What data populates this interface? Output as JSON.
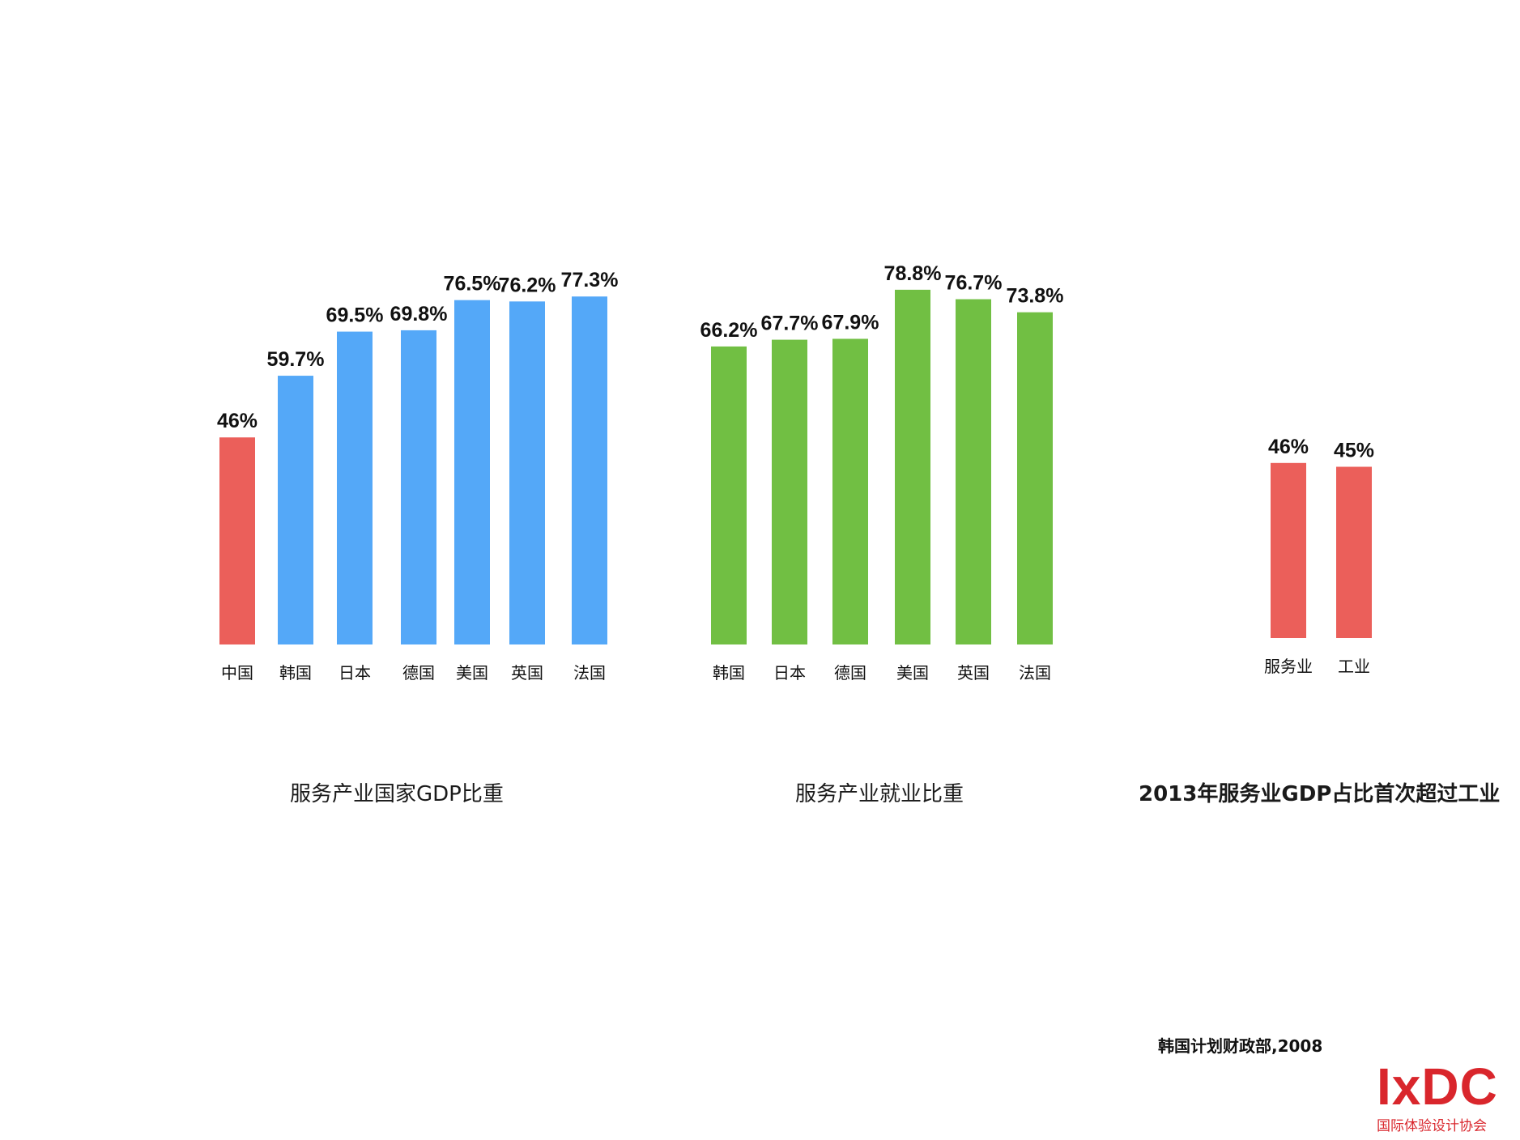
{
  "chart_data": [
    {
      "type": "bar",
      "title": "服务产业国家GDP比重",
      "categories": [
        "中国",
        "韩国",
        "日本",
        "德国",
        "美国",
        "英国",
        "法国"
      ],
      "values": [
        46,
        59.7,
        69.5,
        69.8,
        76.5,
        76.2,
        77.3
      ],
      "value_labels": [
        "46%",
        "59.7%",
        "69.5%",
        "69.8%",
        "76.5%",
        "76.2%",
        "77.3%"
      ],
      "colors": [
        "#eb5f5a",
        "#54a8f8",
        "#54a8f8",
        "#54a8f8",
        "#54a8f8",
        "#54a8f8",
        "#54a8f8"
      ],
      "ylim": [
        0,
        80
      ]
    },
    {
      "type": "bar",
      "title": "服务产业就业比重",
      "categories": [
        "韩国",
        "日本",
        "德国",
        "美国",
        "英国",
        "法国"
      ],
      "values": [
        66.2,
        67.7,
        67.9,
        78.8,
        76.7,
        73.8
      ],
      "value_labels": [
        "66.2%",
        "67.7%",
        "67.9%",
        "78.8%",
        "76.7%",
        "73.8%"
      ],
      "colors": [
        "#71bf43",
        "#71bf43",
        "#71bf43",
        "#71bf43",
        "#71bf43",
        "#71bf43"
      ],
      "ylim": [
        0,
        80
      ]
    },
    {
      "type": "bar",
      "title": "2013年服务业GDP占比首次超过工业",
      "categories": [
        "服务业",
        "工业"
      ],
      "values": [
        46,
        45
      ],
      "value_labels": [
        "46%",
        "45%"
      ],
      "colors": [
        "#eb5f5a",
        "#eb5f5a"
      ],
      "ylim": [
        0,
        80
      ]
    }
  ],
  "source": "韩国计划财政部,2008",
  "logo": {
    "text": "IxDC",
    "subtitle": "国际体验设计协会",
    "color": "#d9262c"
  }
}
